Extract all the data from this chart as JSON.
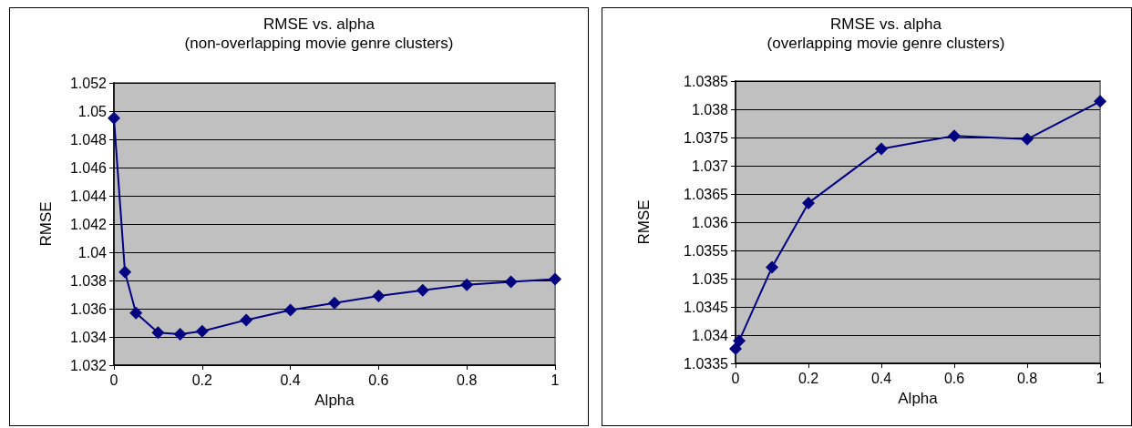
{
  "chart_data": [
    {
      "type": "line",
      "title": "RMSE vs. alpha",
      "subtitle": "(non-overlapping movie genre clusters)",
      "xlabel": "Alpha",
      "ylabel": "RMSE",
      "x": [
        0,
        0.025,
        0.05,
        0.1,
        0.15,
        0.2,
        0.3,
        0.4,
        0.5,
        0.6,
        0.7,
        0.8,
        0.9,
        1
      ],
      "series": [
        {
          "color": "#000080",
          "values": [
            1.0495,
            1.0386,
            1.0357,
            1.0343,
            1.0342,
            1.0344,
            1.0352,
            1.0359,
            1.0364,
            1.0369,
            1.0373,
            1.0377,
            1.0379,
            1.0381
          ]
        }
      ],
      "xlim": [
        0,
        1
      ],
      "xticks": [
        0,
        0.2,
        0.4,
        0.6,
        0.8,
        1
      ],
      "ylim": [
        1.032,
        1.052
      ],
      "yticks": [
        1.032,
        1.034,
        1.036,
        1.038,
        1.04,
        1.042,
        1.044,
        1.046,
        1.048,
        1.05,
        1.052
      ],
      "grid": "y",
      "marker": "diamond",
      "line_style": "solid"
    },
    {
      "type": "line",
      "title": "RMSE vs. alpha",
      "subtitle": "(overlapping movie genre clusters)",
      "xlabel": "Alpha",
      "ylabel": "RMSE",
      "x": [
        0,
        0.01,
        0.1,
        0.2,
        0.4,
        0.6,
        0.8,
        1
      ],
      "series": [
        {
          "color": "#000080",
          "values": [
            1.03376,
            1.0339,
            1.0352,
            1.03634,
            1.0373,
            1.03753,
            1.03747,
            1.03814
          ]
        }
      ],
      "xlim": [
        0,
        1
      ],
      "xticks": [
        0,
        0.2,
        0.4,
        0.6,
        0.8,
        1
      ],
      "ylim": [
        1.0335,
        1.0385
      ],
      "yticks": [
        1.0335,
        1.034,
        1.0345,
        1.035,
        1.0355,
        1.036,
        1.0365,
        1.037,
        1.0375,
        1.038,
        1.0385
      ],
      "grid": "y",
      "marker": "diamond",
      "line_style": "solid"
    }
  ]
}
